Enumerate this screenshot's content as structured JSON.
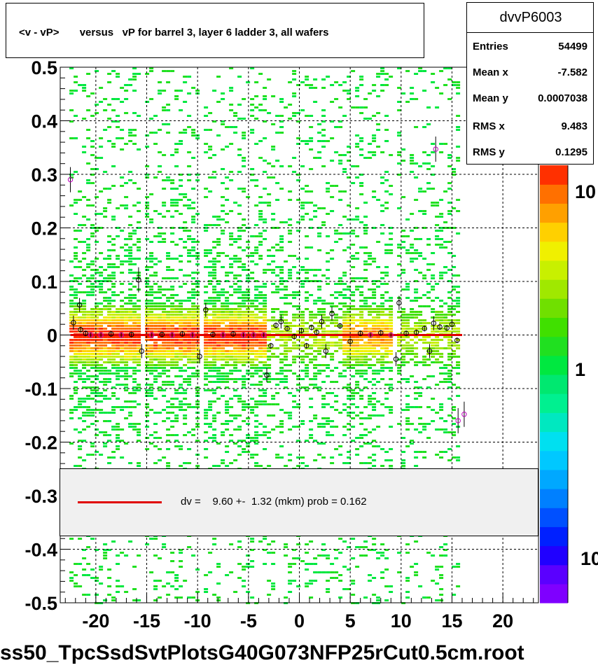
{
  "title": "<v - vP>       versus   vP for barrel 3, layer 6 ladder 3, all wafers",
  "stats": {
    "name": "dvvP6003",
    "rows": [
      {
        "label": "Entries",
        "value": "54499"
      },
      {
        "label": "Mean x",
        "value": "-7.582"
      },
      {
        "label": "Mean y",
        "value": "0.0007038"
      },
      {
        "label": "RMS x",
        "value": "9.483"
      },
      {
        "label": "RMS y",
        "value": "0.1295"
      }
    ]
  },
  "legend": {
    "text": "dv =    9.60 +-  1.32 (mkm) prob = 0.162",
    "line_color": "#e00000"
  },
  "footer": "ss50_TpcSsdSvtPlotsG40G073NFP25rCut0.5cm.root",
  "chart_data": {
    "type": "heatmap",
    "xlim": [
      -23.5,
      23.5
    ],
    "ylim": [
      -0.5,
      0.5
    ],
    "x_ticks": [
      "-20",
      "-15",
      "-10",
      "-5",
      "0",
      "5",
      "10",
      "15",
      "20"
    ],
    "y_ticks": [
      "0.5",
      "0.4",
      "0.3",
      "0.2",
      "0.1",
      "0",
      "-0.1",
      "-0.2",
      "-0.3",
      "-0.4",
      "-0.5"
    ],
    "grid": true,
    "colorbar_labels": [
      "10",
      "1",
      "10"
    ],
    "palette": [
      "#7f00ff",
      "#5a00ff",
      "#2000ff",
      "#0020ff",
      "#0050ff",
      "#0080ff",
      "#00a8ff",
      "#00c8ff",
      "#00e0f0",
      "#00e8c0",
      "#00f090",
      "#00e870",
      "#00e840",
      "#20e020",
      "#40e000",
      "#70e000",
      "#a0e800",
      "#c8f000",
      "#f0f000",
      "#ffd000",
      "#ffa000",
      "#ff7000",
      "#ff3000"
    ],
    "fit": {
      "value": 0.0,
      "color": "#e00000"
    },
    "profile_points": [
      {
        "x": -22.5,
        "y": 0.29
      },
      {
        "x": -22.2,
        "y": 0.023
      },
      {
        "x": -21.6,
        "y": 0.056
      },
      {
        "x": -21.5,
        "y": 0.01
      },
      {
        "x": -21.0,
        "y": 0.003
      },
      {
        "x": -20.5,
        "y": 0.0
      },
      {
        "x": -19.5,
        "y": 0.0
      },
      {
        "x": -18.5,
        "y": 0.002
      },
      {
        "x": -17.5,
        "y": 0.0
      },
      {
        "x": -16.5,
        "y": 0.001
      },
      {
        "x": -15.8,
        "y": 0.103
      },
      {
        "x": -15.5,
        "y": -0.03
      },
      {
        "x": -14.5,
        "y": 0.0
      },
      {
        "x": -13.5,
        "y": 0.001
      },
      {
        "x": -12.5,
        "y": 0.0
      },
      {
        "x": -11.5,
        "y": 0.002
      },
      {
        "x": -10.5,
        "y": 0.0
      },
      {
        "x": -9.8,
        "y": -0.04
      },
      {
        "x": -9.2,
        "y": 0.047
      },
      {
        "x": -8.5,
        "y": 0.001
      },
      {
        "x": -7.5,
        "y": 0.0
      },
      {
        "x": -6.5,
        "y": 0.002
      },
      {
        "x": -5.5,
        "y": 0.0
      },
      {
        "x": -4.5,
        "y": 0.0
      },
      {
        "x": -3.5,
        "y": 0.0
      },
      {
        "x": -3.2,
        "y": -0.075
      },
      {
        "x": -2.8,
        "y": -0.02
      },
      {
        "x": -2.3,
        "y": 0.018
      },
      {
        "x": -1.8,
        "y": 0.025
      },
      {
        "x": -1.2,
        "y": 0.012
      },
      {
        "x": -0.5,
        "y": -0.003
      },
      {
        "x": 0.2,
        "y": 0.008
      },
      {
        "x": 0.7,
        "y": -0.02
      },
      {
        "x": 1.2,
        "y": 0.014
      },
      {
        "x": 1.7,
        "y": 0.005
      },
      {
        "x": 2.2,
        "y": 0.025
      },
      {
        "x": 2.6,
        "y": -0.03
      },
      {
        "x": 3.2,
        "y": 0.04
      },
      {
        "x": 4.0,
        "y": 0.017
      },
      {
        "x": 5.0,
        "y": -0.012
      },
      {
        "x": 6.0,
        "y": 0.003
      },
      {
        "x": 7.0,
        "y": 0.0
      },
      {
        "x": 8.0,
        "y": 0.004
      },
      {
        "x": 9.0,
        "y": 0.0
      },
      {
        "x": 9.5,
        "y": -0.045
      },
      {
        "x": 9.8,
        "y": 0.06
      },
      {
        "x": 10.5,
        "y": 0.003
      },
      {
        "x": 11.5,
        "y": 0.005
      },
      {
        "x": 12.3,
        "y": 0.012
      },
      {
        "x": 12.8,
        "y": -0.03
      },
      {
        "x": 13.2,
        "y": 0.022
      },
      {
        "x": 13.4,
        "y": 0.347
      },
      {
        "x": 13.8,
        "y": 0.015
      },
      {
        "x": 14.5,
        "y": 0.013
      },
      {
        "x": 15.0,
        "y": 0.02
      },
      {
        "x": 15.5,
        "y": -0.01
      },
      {
        "x": 15.6,
        "y": -0.16
      },
      {
        "x": 16.2,
        "y": -0.148
      }
    ]
  }
}
